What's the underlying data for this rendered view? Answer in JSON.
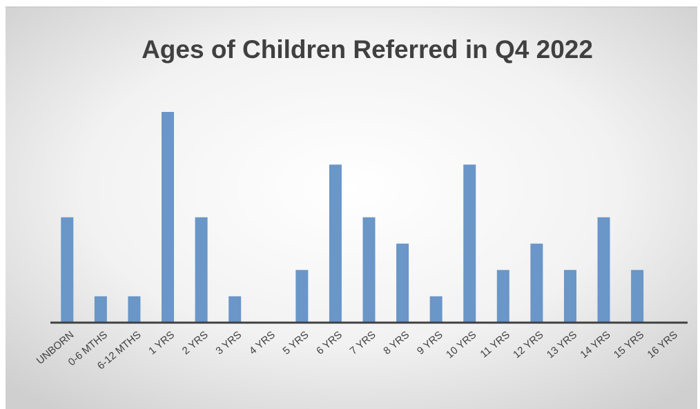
{
  "chart_data": {
    "type": "bar",
    "title": "Ages of Children Referred in Q4 2022",
    "categories": [
      "UNBORN",
      "0-6 MTHS",
      "6-12 MTHS",
      "1 YRS",
      "2 YRS",
      "3 YRS",
      "4 YRS",
      "5 YRS",
      "6 YRS",
      "7 YRS",
      "8 YRS",
      "9 YRS",
      "10 YRS",
      "11 YRS",
      "12 YRS",
      "13 YRS",
      "14 YRS",
      "15 YRS",
      "16 YRS"
    ],
    "values": [
      4,
      1,
      1,
      8,
      4,
      1,
      0,
      2,
      6,
      4,
      3,
      1,
      6,
      2,
      3,
      2,
      4,
      2,
      0
    ],
    "color": "#6a96c8"
  }
}
